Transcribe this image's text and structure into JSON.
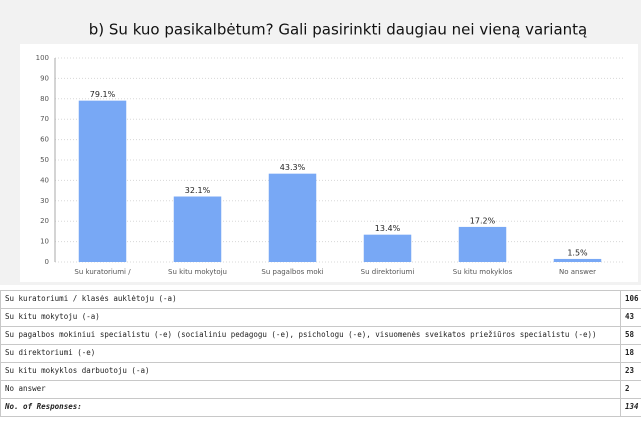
{
  "chart_data": {
    "type": "bar",
    "title": "b) Su kuo pasikalbėtum? Gali pasirinkti daugiau nei vieną variantą",
    "categories": [
      "Su kuratoriumi /",
      "Su kitu mokytoju",
      "Su pagalbos moki",
      "Su direktoriumi",
      "Su kitu mokyklos",
      "No answer"
    ],
    "values": [
      79.1,
      32.1,
      43.3,
      13.4,
      17.2,
      1.5
    ],
    "value_labels": [
      "79.1%",
      "32.1%",
      "43.3%",
      "13.4%",
      "17.2%",
      "1.5%"
    ],
    "color": "#78a8f5",
    "ylim": [
      0,
      100
    ],
    "yticks": [
      0,
      10,
      20,
      30,
      40,
      50,
      60,
      70,
      80,
      90,
      100
    ],
    "grid": true
  },
  "table": {
    "rows": [
      [
        "Su kuratoriumi / klasės auklėtoju (-a)",
        "106"
      ],
      [
        "Su kitu mokytoju (-a)",
        "43"
      ],
      [
        "Su pagalbos mokiniui specialistu (-e) (socialiniu pedagogu (-e), psichologu (-e), visuomenės sveikatos priežiūros specialistu (-e))",
        "58"
      ],
      [
        "Su direktoriumi (-e)",
        "18"
      ],
      [
        "Su kitu mokyklos darbuotoju (-a)",
        "23"
      ],
      [
        "No answer",
        "2"
      ],
      [
        "No. of Responses:",
        "134"
      ]
    ]
  }
}
